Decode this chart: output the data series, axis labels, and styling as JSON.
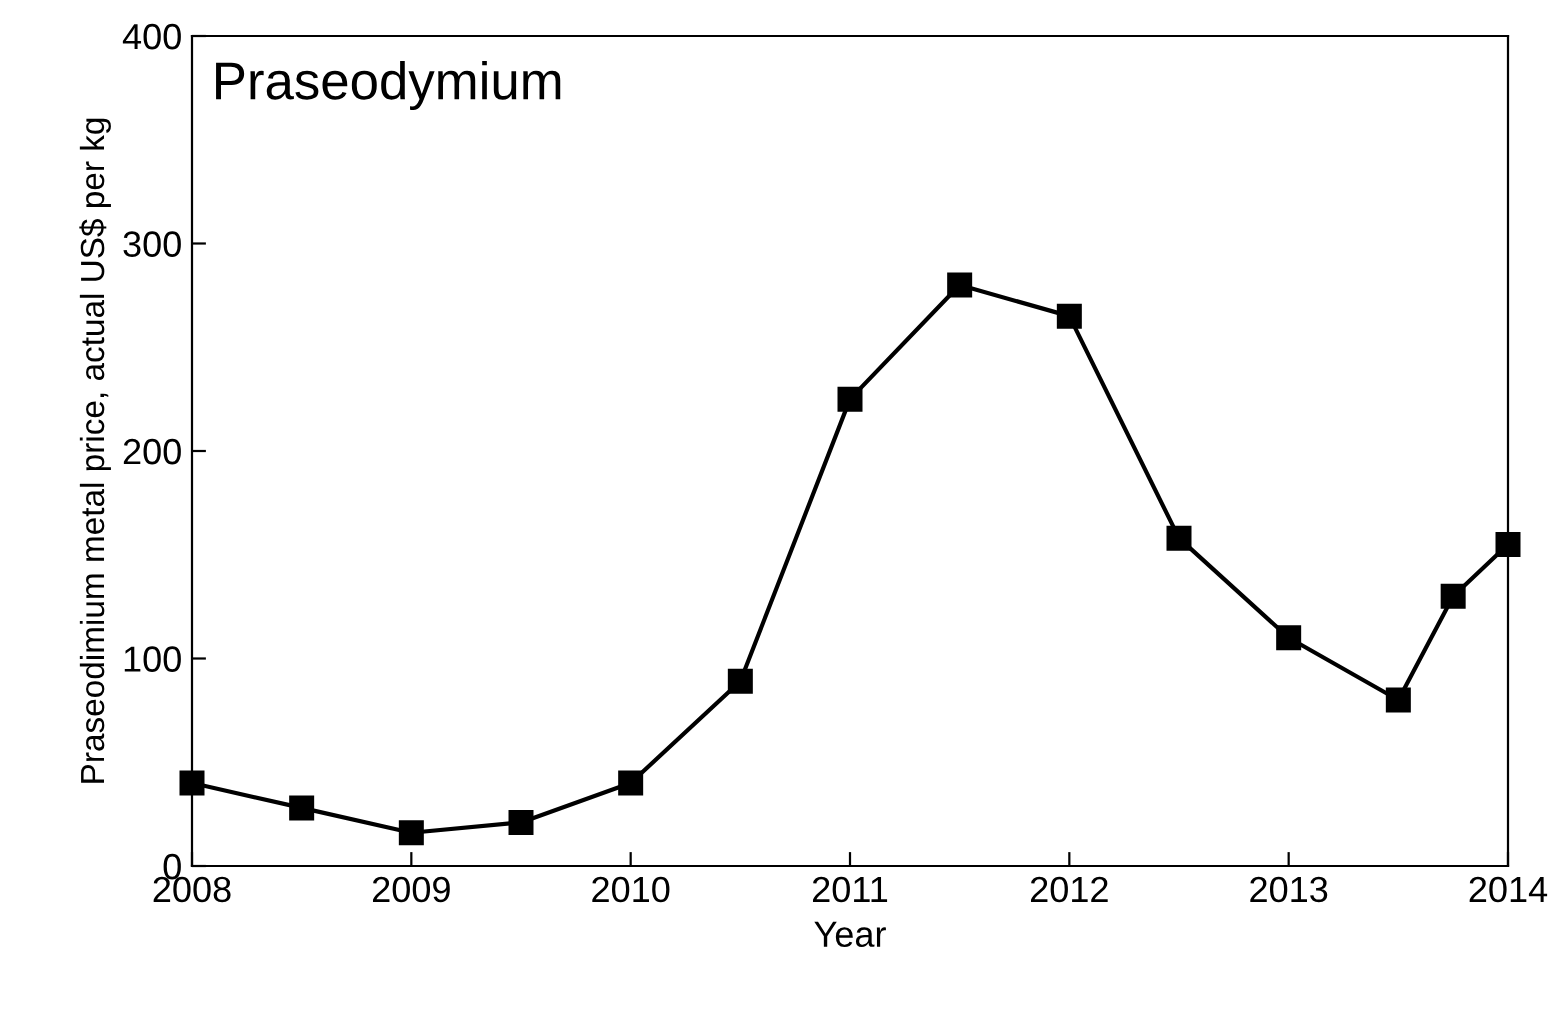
{
  "chart_data": {
    "type": "line",
    "title": "Praseodymium",
    "xlabel": "Year",
    "ylabel": "Praseodimium metal price, actual US$ per kg",
    "x": [
      2008,
      2008.5,
      2009,
      2009.5,
      2010,
      2010.5,
      2011,
      2011.5,
      2012,
      2012.5,
      2013,
      2013.5,
      2013.75,
      2014
    ],
    "series": [
      {
        "color": "#000000",
        "values": [
          40,
          28,
          16,
          21,
          40,
          89,
          225,
          280,
          265,
          158,
          110,
          80,
          130,
          155
        ]
      }
    ],
    "xlim": [
      2008,
      2014
    ],
    "xticks": [
      2008,
      2009,
      2010,
      2011,
      2012,
      2013,
      2014
    ],
    "ylim": [
      0,
      400
    ],
    "yticks": [
      0,
      100,
      200,
      300,
      400
    ],
    "marker": "square",
    "line_style": "solid",
    "grid": false,
    "legend": false
  }
}
